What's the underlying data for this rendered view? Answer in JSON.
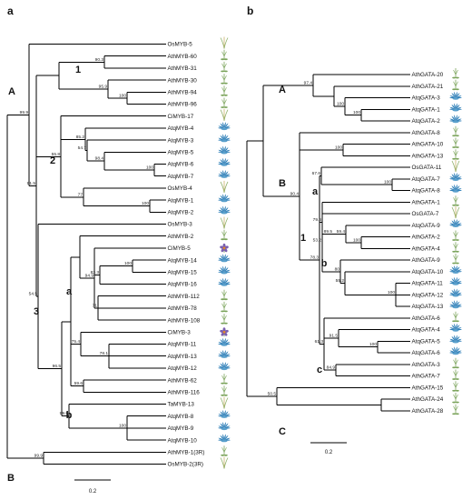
{
  "panels": {
    "a": {
      "panel_label": "a",
      "scale_bar_label": "0.2",
      "leaves": [
        {
          "label": "OsMYB-5",
          "icon": "grass-plant-icon"
        },
        {
          "label": "AthMYB-60",
          "icon": "arabidopsis-plant-icon"
        },
        {
          "label": "AthMYB-31",
          "icon": "arabidopsis-plant-icon"
        },
        {
          "label": "AthMYB-30",
          "icon": "arabidopsis-plant-icon"
        },
        {
          "label": "AthMYB-94",
          "icon": "arabidopsis-plant-icon"
        },
        {
          "label": "AthMYB-96",
          "icon": "arabidopsis-plant-icon"
        },
        {
          "label": "CiMYB-17",
          "icon": "grass-plant-icon"
        },
        {
          "label": "AtqMYB-4",
          "icon": "blue-succulent-icon"
        },
        {
          "label": "AtqMYB-3",
          "icon": "blue-succulent-icon"
        },
        {
          "label": "AtqMYB-5",
          "icon": "blue-succulent-icon"
        },
        {
          "label": "AtqMYB-6",
          "icon": "blue-succulent-icon"
        },
        {
          "label": "AtqMYB-7",
          "icon": "blue-succulent-icon"
        },
        {
          "label": "OsMYB-4",
          "icon": "grass-plant-icon"
        },
        {
          "label": "AtqMYB-1",
          "icon": "blue-succulent-icon"
        },
        {
          "label": "AtqMYB-2",
          "icon": "blue-succulent-icon"
        },
        {
          "label": "OsMYB-3",
          "icon": "grass-plant-icon"
        },
        {
          "label": "AthMYB-2",
          "icon": "arabidopsis-plant-icon"
        },
        {
          "label": "CiMYB-5",
          "icon": "flower-plant-icon"
        },
        {
          "label": "AtqMYB-14",
          "icon": "blue-succulent-icon"
        },
        {
          "label": "AtqMYB-15",
          "icon": "blue-succulent-icon"
        },
        {
          "label": "AtqMYB-16",
          "icon": "blue-succulent-icon"
        },
        {
          "label": "AthMYB-112",
          "icon": "arabidopsis-plant-icon"
        },
        {
          "label": "AthMYB-78",
          "icon": "arabidopsis-plant-icon"
        },
        {
          "label": "AthMYB-108",
          "icon": "arabidopsis-plant-icon"
        },
        {
          "label": "CiMYB-3",
          "icon": "flower-plant-icon"
        },
        {
          "label": "AtqMYB-11",
          "icon": "blue-succulent-icon"
        },
        {
          "label": "AtqMYB-13",
          "icon": "blue-succulent-icon"
        },
        {
          "label": "AtqMYB-12",
          "icon": "blue-succulent-icon"
        },
        {
          "label": "AthMYB-62",
          "icon": "arabidopsis-plant-icon"
        },
        {
          "label": "AthMYB-116",
          "icon": "arabidopsis-plant-icon"
        },
        {
          "label": "TaMYB-13",
          "icon": "grass-plant-icon"
        },
        {
          "label": "AtqMYB-8",
          "icon": "blue-succulent-icon"
        },
        {
          "label": "AtqMYB-9",
          "icon": "blue-succulent-icon"
        },
        {
          "label": "AtqMYB-10",
          "icon": "blue-succulent-icon"
        },
        {
          "label": "AthMYB-1(3R)",
          "icon": "arabidopsis-plant-icon"
        },
        {
          "label": "OsMYB-2(3R)",
          "icon": "grass-plant-icon"
        }
      ],
      "bootstrap": [
        "99.9",
        "99.3",
        "90.3",
        "95.9",
        "100",
        "85.2",
        "54.7",
        "98.4",
        "100",
        "77",
        "100",
        "55.8",
        "91.5",
        "94.9",
        "83.3",
        "100",
        "71",
        "56.9",
        "51.3",
        "100",
        "78.1",
        "75.4",
        "59.6",
        "99.8",
        "100",
        "96.5",
        "54.5",
        "99.9"
      ],
      "clades": [
        "A",
        "1",
        "2",
        "3",
        "a",
        "b",
        "B"
      ]
    },
    "b": {
      "panel_label": "b",
      "scale_bar_label": "0.2",
      "leaves": [
        {
          "label": "AthGATA-20",
          "icon": "arabidopsis-plant-icon"
        },
        {
          "label": "AthGATA-21",
          "icon": "arabidopsis-plant-icon"
        },
        {
          "label": "AtqGATA-3",
          "icon": "blue-succulent-icon"
        },
        {
          "label": "AtqGATA-1",
          "icon": "blue-succulent-icon"
        },
        {
          "label": "AtqGATA-2",
          "icon": "blue-succulent-icon"
        },
        {
          "label": "AthGATA-8",
          "icon": "arabidopsis-plant-icon"
        },
        {
          "label": "AthGATA-10",
          "icon": "arabidopsis-plant-icon"
        },
        {
          "label": "AthGATA-13",
          "icon": "arabidopsis-plant-icon"
        },
        {
          "label": "OsGATA-11",
          "icon": "grass-plant-icon"
        },
        {
          "label": "AtqGATA-7",
          "icon": "blue-succulent-icon"
        },
        {
          "label": "AtqGATA-8",
          "icon": "blue-succulent-icon"
        },
        {
          "label": "AthGATA-1",
          "icon": "arabidopsis-plant-icon"
        },
        {
          "label": "OsGATA-7",
          "icon": "grass-plant-icon"
        },
        {
          "label": "AtqGATA-9",
          "icon": "blue-succulent-icon"
        },
        {
          "label": "AthGATA-2",
          "icon": "arabidopsis-plant-icon"
        },
        {
          "label": "AthGATA-4",
          "icon": "arabidopsis-plant-icon"
        },
        {
          "label": "AthGATA-9",
          "icon": "arabidopsis-plant-icon"
        },
        {
          "label": "AtqGATA-10",
          "icon": "blue-succulent-icon"
        },
        {
          "label": "AtqGATA-11",
          "icon": "blue-succulent-icon"
        },
        {
          "label": "AtqGATA-12",
          "icon": "blue-succulent-icon"
        },
        {
          "label": "AtqGATA-13",
          "icon": "blue-succulent-icon"
        },
        {
          "label": "AthGATA-6",
          "icon": "arabidopsis-plant-icon"
        },
        {
          "label": "AtqGATA-4",
          "icon": "blue-succulent-icon"
        },
        {
          "label": "AtqGATA-5",
          "icon": "blue-succulent-icon"
        },
        {
          "label": "AtqGATA-6",
          "icon": "blue-succulent-icon"
        },
        {
          "label": "AthGATA-3",
          "icon": "arabidopsis-plant-icon"
        },
        {
          "label": "AthGATA-7",
          "icon": "arabidopsis-plant-icon"
        },
        {
          "label": "AthGATA-15",
          "icon": "arabidopsis-plant-icon"
        },
        {
          "label": "AthGATA-24",
          "icon": "arabidopsis-plant-icon"
        },
        {
          "label": "AthGATA-28",
          "icon": "arabidopsis-plant-icon"
        }
      ],
      "bootstrap": [
        "97.4",
        "100",
        "100",
        "67.6",
        "100",
        "79.6",
        "59.4",
        "100",
        "89.5",
        "55.2",
        "100",
        "80",
        "53.2",
        "91.5",
        "100",
        "61.3",
        "84.9",
        "78.3",
        "90.4",
        "100",
        "50.5"
      ],
      "clades": [
        "A",
        "B",
        "1",
        "a",
        "b",
        "c",
        "C"
      ]
    }
  },
  "colors": {
    "line": "#000000",
    "succulent": "#2e7fb8",
    "arabidopsis": "#7aa35a",
    "grass": "#8fb06a",
    "flower_petal": "#7a5fb0",
    "flower_center": "#e0862a"
  }
}
